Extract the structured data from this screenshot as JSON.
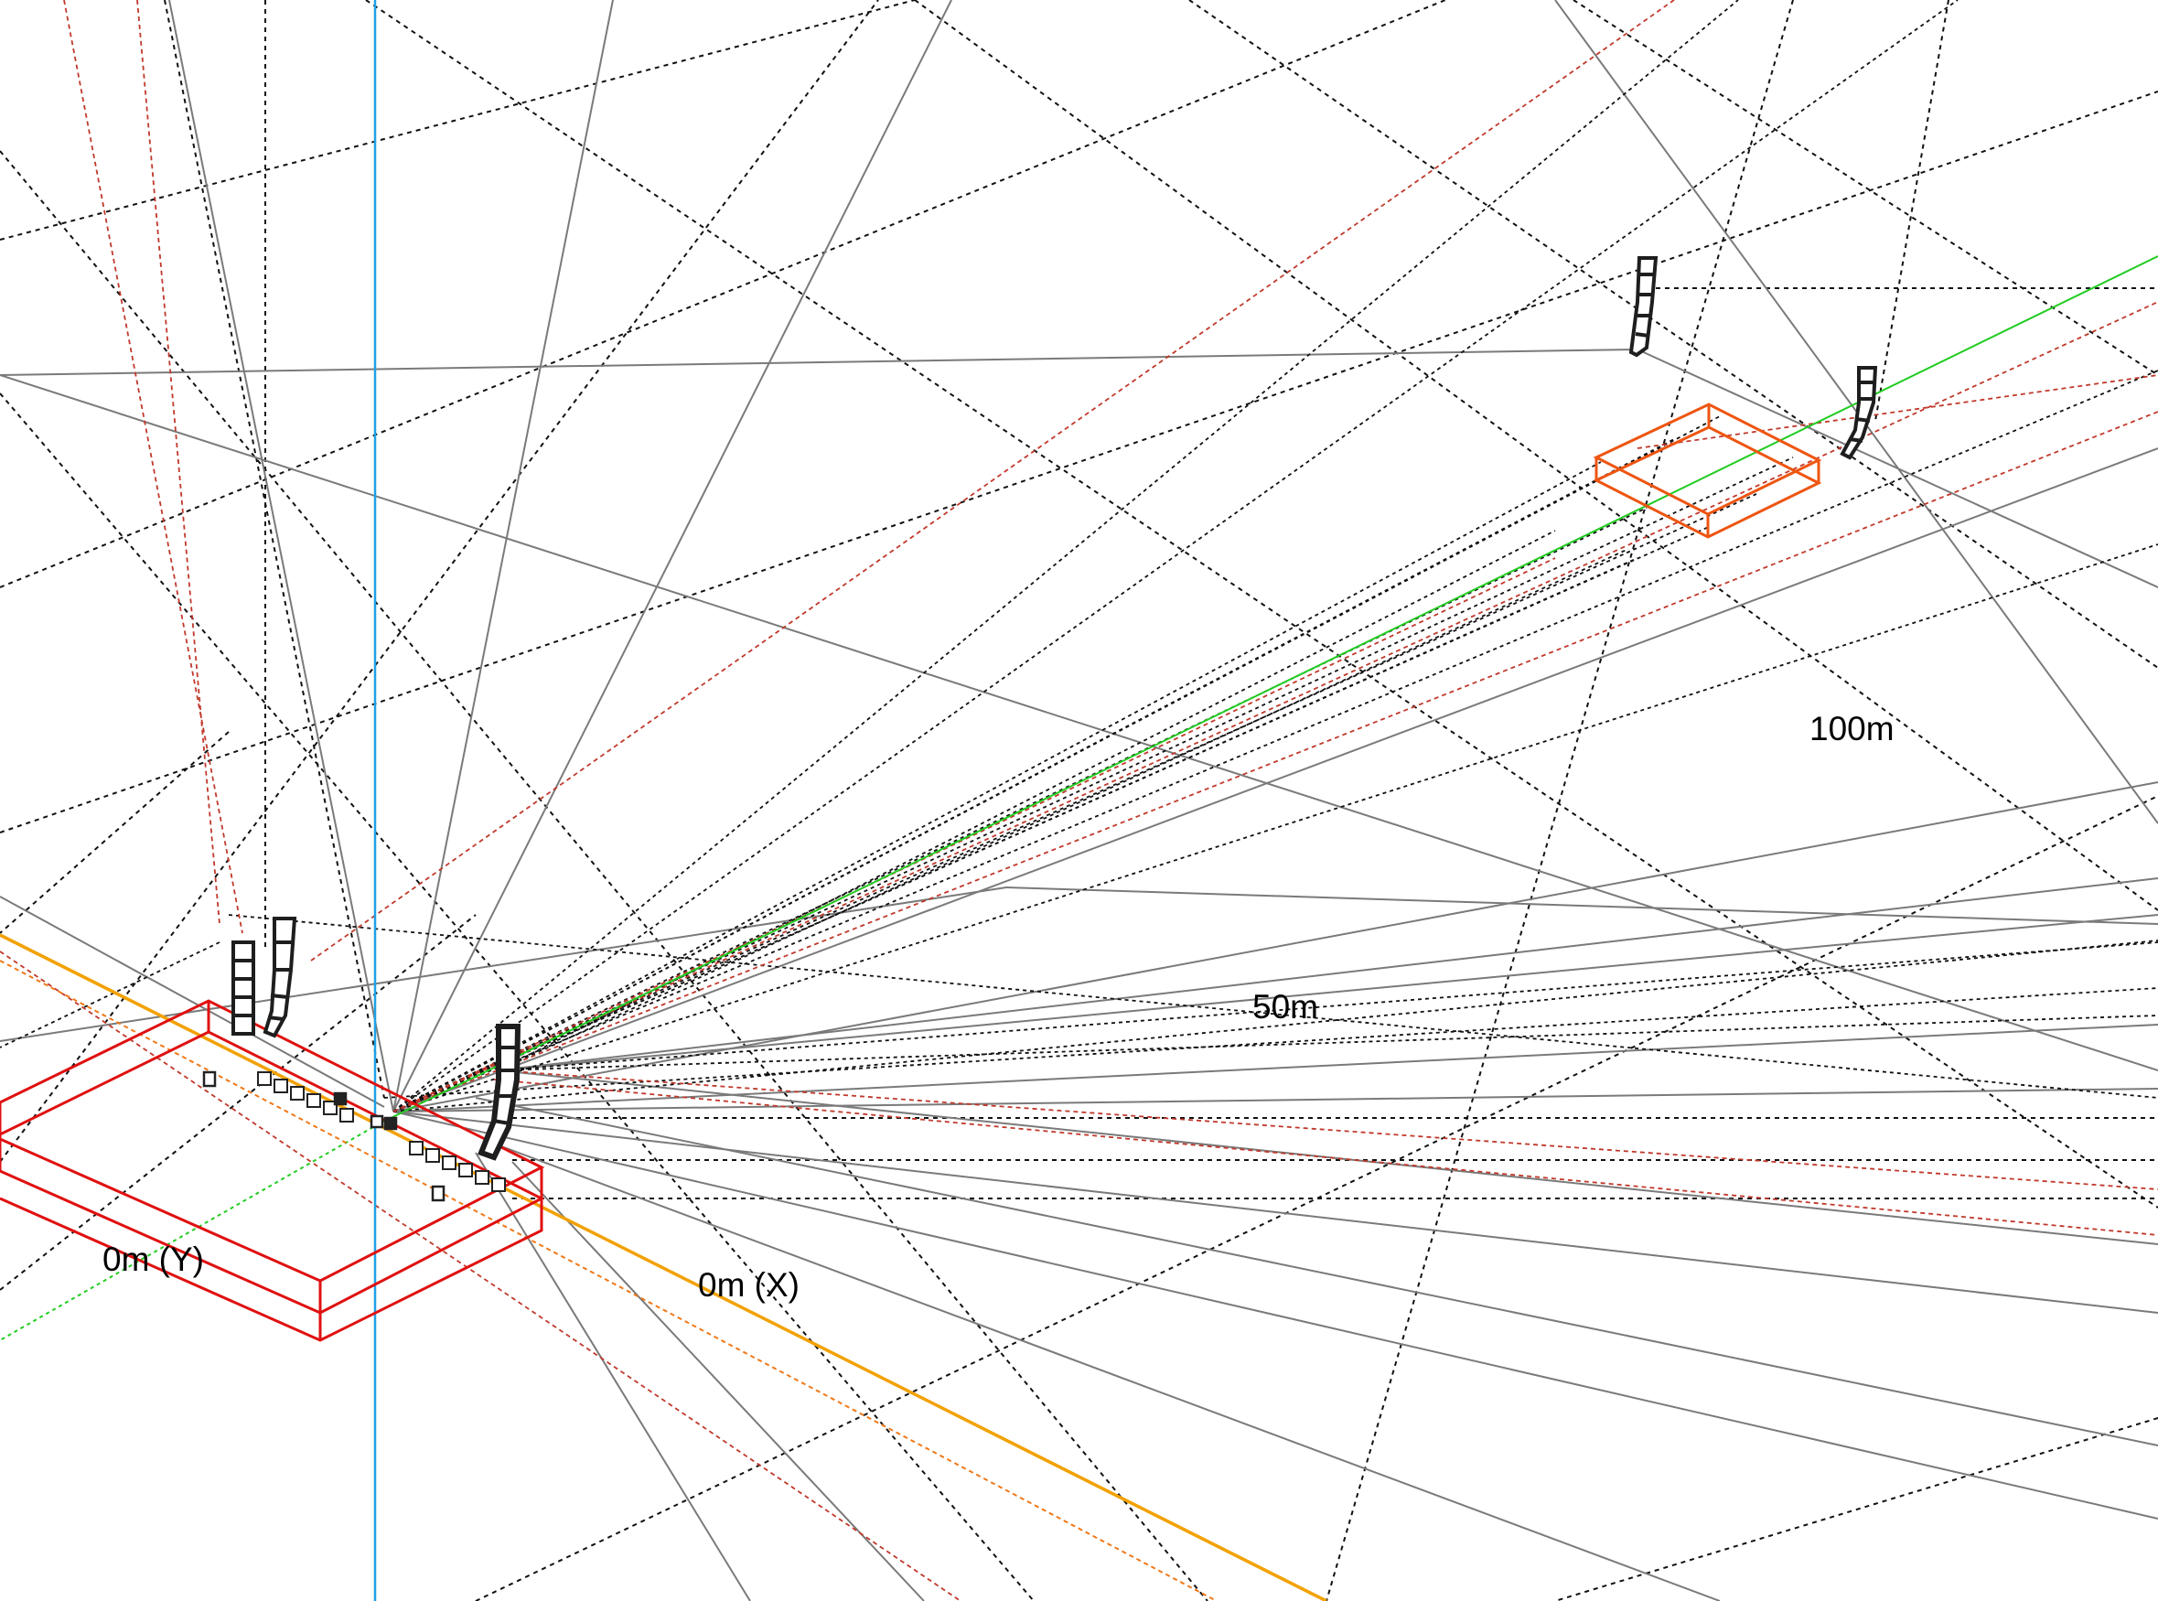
{
  "viewport": {
    "background": "#ffffff",
    "colors": {
      "grid": "#000000",
      "ray_gray": "#7a7a7a",
      "ray_red": "#c0392b",
      "x_axis": "#f2a100",
      "y_axis": "#22cc22",
      "z_axis": "#1fa0e6",
      "stage_box": "#e01010",
      "fohbox": "#ee5511",
      "speaker": "#1e1e1e"
    },
    "icons": [
      "line-array-speaker-icon",
      "stage-box-icon",
      "listener-area-box-icon",
      "axis-line-icon"
    ]
  },
  "labels": {
    "dist_100": "100m",
    "dist_50": "50m",
    "axis_y": "0m (Y)",
    "axis_x": "0m (X)"
  }
}
